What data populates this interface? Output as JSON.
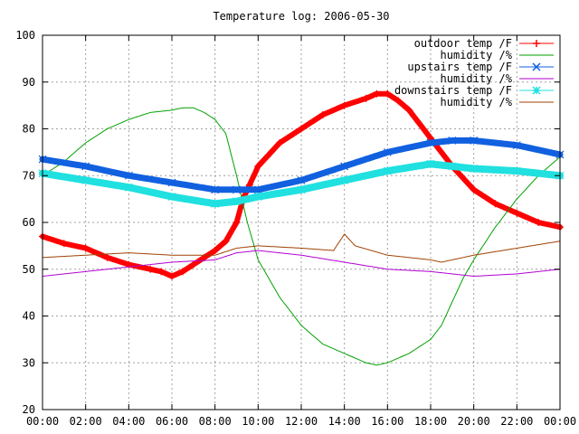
{
  "chart_data": {
    "type": "line",
    "title": "Temperature log: 2006-05-30",
    "xlabel": "",
    "ylabel": "",
    "grid": true,
    "legend_position": "top-right",
    "xlim": [
      0,
      24
    ],
    "ylim": [
      20,
      100
    ],
    "x_ticks": [
      "00:00",
      "02:00",
      "04:00",
      "06:00",
      "08:00",
      "10:00",
      "12:00",
      "14:00",
      "16:00",
      "18:00",
      "20:00",
      "22:00",
      "00:00"
    ],
    "y_ticks": [
      "20",
      "30",
      "40",
      "50",
      "60",
      "70",
      "80",
      "90",
      "100"
    ],
    "series": [
      {
        "name": "outdoor temp /F",
        "color": "#ff0000",
        "marker": "plus",
        "x": [
          0,
          1,
          2,
          3,
          4,
          5,
          5.5,
          6,
          6.5,
          7,
          7.5,
          8,
          8.5,
          9,
          9.3,
          9.6,
          10,
          11,
          12,
          13,
          14,
          15,
          15.5,
          16,
          16.5,
          17,
          18,
          19,
          20,
          21,
          22,
          23,
          24
        ],
        "values": [
          57,
          55.5,
          54.5,
          52.5,
          51,
          50,
          49.5,
          48.5,
          49.5,
          51,
          52.5,
          54,
          56,
          60,
          65,
          68,
          72,
          77,
          80,
          83,
          85,
          86.5,
          87.5,
          87.5,
          86,
          84,
          78,
          72,
          67,
          64,
          62,
          60,
          59
        ]
      },
      {
        "name": "humidity /%",
        "color": "#00a000",
        "marker": "none",
        "x": [
          0,
          1,
          2,
          3,
          4,
          5,
          6,
          6.5,
          7,
          7.5,
          8,
          8.5,
          9,
          9.5,
          10,
          11,
          12,
          13,
          14,
          15,
          15.5,
          16,
          17,
          18,
          18.5,
          19,
          19.5,
          20,
          21,
          22,
          23,
          24
        ],
        "values": [
          70,
          73,
          77,
          80,
          82,
          83.5,
          84,
          84.5,
          84.5,
          83.5,
          82,
          79,
          70,
          60,
          52,
          44,
          38,
          34,
          32,
          30,
          29.5,
          30,
          32,
          35,
          38,
          43,
          48,
          52,
          59,
          65,
          70,
          74
        ]
      },
      {
        "name": "upstairs temp /F",
        "color": "#1060e0",
        "marker": "x",
        "x": [
          0,
          2,
          4,
          6,
          8,
          9,
          10,
          12,
          14,
          16,
          18,
          19,
          20,
          22,
          24
        ],
        "values": [
          73.5,
          72,
          70,
          68.5,
          67,
          67,
          67,
          69,
          72,
          75,
          77,
          77.5,
          77.5,
          76.5,
          74.5
        ]
      },
      {
        "name": "humidity /%",
        "color": "#b000d0",
        "marker": "none",
        "x": [
          0,
          2,
          4,
          6,
          8,
          9,
          10,
          12,
          14,
          16,
          18,
          20,
          22,
          24
        ],
        "values": [
          48.5,
          49.5,
          50.5,
          51.5,
          52,
          53.5,
          54,
          53,
          51.5,
          50,
          49.5,
          48.5,
          49,
          50
        ]
      },
      {
        "name": "downstairs temp /F",
        "color": "#20e0e0",
        "marker": "star",
        "x": [
          0,
          2,
          4,
          6,
          8,
          9,
          10,
          12,
          14,
          16,
          18,
          19,
          20,
          22,
          24
        ],
        "values": [
          70.5,
          69,
          67.5,
          65.5,
          64,
          64.5,
          65.5,
          67,
          69,
          71,
          72.5,
          72,
          71.5,
          71,
          70
        ]
      },
      {
        "name": "humidity /%",
        "color": "#a04000",
        "marker": "none",
        "x": [
          0,
          2,
          4,
          6,
          8,
          9,
          10,
          12,
          13.5,
          14,
          14.5,
          16,
          18,
          18.5,
          19,
          20,
          22,
          24
        ],
        "values": [
          52.5,
          53,
          53.5,
          53,
          53,
          54.5,
          55,
          54.5,
          54,
          57.5,
          55,
          53,
          52,
          51.5,
          52,
          53,
          54.5,
          56
        ]
      }
    ]
  }
}
